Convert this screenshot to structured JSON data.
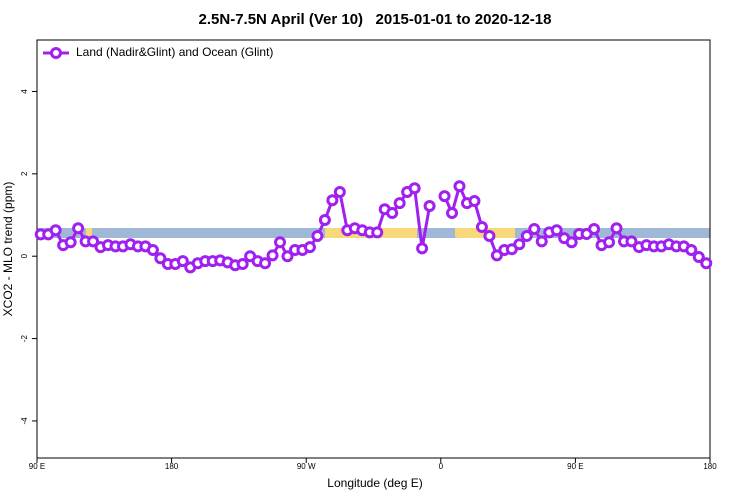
{
  "chart_data": {
    "type": "line",
    "title": "2.5N-7.5N April (Ver 10)   2015-01-01 to 2020-12-18",
    "xlabel": "Longitude (deg E)",
    "ylabel": "XCO2 - MLO trend (ppm)",
    "x": [
      92.5,
      97.5,
      102.5,
      107.5,
      112.5,
      117.5,
      122.5,
      127.5,
      132.5,
      137.5,
      142.5,
      147.5,
      152.5,
      157.5,
      162.5,
      167.5,
      172.5,
      177.5,
      182.5,
      187.5,
      192.5,
      197.5,
      202.5,
      207.5,
      212.5,
      217.5,
      222.5,
      227.5,
      232.5,
      237.5,
      242.5,
      247.5,
      252.5,
      257.5,
      262.5,
      267.5,
      272.5,
      277.5,
      282.5,
      287.5,
      292.5,
      297.5,
      302.5,
      307.5,
      312.5,
      317.5,
      322.5,
      327.5,
      332.5,
      337.5,
      342.5,
      347.5,
      352.5,
      357.5,
      362.5,
      367.5,
      372.5,
      377.5,
      382.5,
      387.5,
      392.5,
      397.5,
      402.5,
      407.5,
      412.5,
      417.5,
      422.5,
      427.5,
      432.5,
      437.5,
      442.5,
      447.5,
      452.5,
      457.5,
      462.5,
      467.5,
      472.5,
      477.5,
      482.5,
      487.5,
      492.5,
      497.5,
      502.5,
      507.5,
      512.5,
      517.5,
      522.5,
      527.5,
      532.5,
      537.5
    ],
    "series": [
      {
        "name": "Land (Nadir&Glint) and Ocean (Glint)",
        "color": "#a020f0",
        "values": [
          0.53,
          0.53,
          0.63,
          0.27,
          0.34,
          0.68,
          0.36,
          0.36,
          0.22,
          0.27,
          0.24,
          0.24,
          0.29,
          0.24,
          0.24,
          0.15,
          -0.05,
          -0.19,
          -0.19,
          -0.12,
          -0.27,
          -0.17,
          -0.12,
          -0.12,
          -0.1,
          -0.15,
          -0.22,
          -0.19,
          0,
          -0.12,
          -0.17,
          0.02,
          0.34,
          0,
          0.15,
          0.15,
          0.22,
          0.49,
          0.88,
          1.36,
          1.56,
          0.63,
          0.68,
          0.63,
          0.58,
          0.58,
          1.14,
          1.05,
          1.29,
          1.56,
          1.65,
          0.19,
          1.22,
          null,
          1.46,
          1.05,
          1.7,
          1.29,
          1.34,
          0.71,
          0.49,
          0.02,
          0.15,
          0.17,
          0.29,
          0.49,
          0.66,
          0.36,
          0.58,
          0.63,
          0.44,
          0.34,
          0.54,
          0.54,
          0.66,
          0.27,
          0.34,
          0.68,
          0.36,
          0.36,
          0.22,
          0.27,
          0.24,
          0.24,
          0.29,
          0.24,
          0.24,
          0.15,
          -0.02,
          -0.17
        ]
      }
    ],
    "xlim": [
      90,
      540
    ],
    "ylim": [
      -4.9,
      5.25
    ],
    "xticks": [
      {
        "value": 90,
        "label": "90 E"
      },
      {
        "value": 180,
        "label": "180"
      },
      {
        "value": 270,
        "label": "90 W"
      },
      {
        "value": 360,
        "label": "0"
      },
      {
        "value": 450,
        "label": "90 E"
      },
      {
        "value": 540,
        "label": "180"
      }
    ],
    "yticks": [
      -4,
      -2,
      0,
      2,
      4
    ],
    "legend": "top-left"
  }
}
